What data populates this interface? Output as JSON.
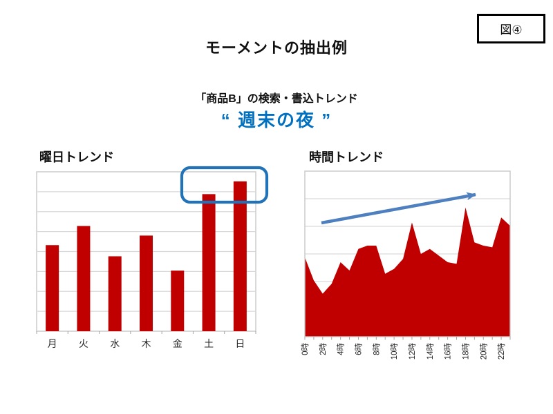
{
  "figure_label": "図④",
  "title": "モーメントの抽出例",
  "subtitle": {
    "line1": "「商品B」の検索・書込トレンド",
    "line2": "“ 週末の夜 ”"
  },
  "colors": {
    "series_red": "#C00000",
    "accent_blue": "#0070C0",
    "arrow_blue": "#4E7FBE",
    "highlight_blue": "#2272B8",
    "gridline": "#D9D9D9",
    "plot_border": "#C8C8C8",
    "tick": "#A6A6A6",
    "axis_text": "#262626"
  },
  "chart_data": [
    {
      "type": "bar",
      "title": "曜日トレンド",
      "categories": [
        "月",
        "火",
        "水",
        "木",
        "金",
        "土",
        "日"
      ],
      "values": [
        54,
        66,
        47,
        60,
        38,
        86,
        94
      ],
      "ylim": [
        0,
        100
      ],
      "y_gridline_divisions": 8,
      "grid": true,
      "legend": false,
      "y_axis_labels": "none",
      "bar_color": "#C00000",
      "highlight": {
        "shape": "rounded-rectangle",
        "color": "#2272B8",
        "over_categories": [
          "土",
          "日"
        ],
        "meaning": "weekend bars highlighted"
      }
    },
    {
      "type": "area",
      "title": "時間トレンド",
      "x_hours": [
        0,
        1,
        2,
        3,
        4,
        5,
        6,
        7,
        8,
        9,
        10,
        11,
        12,
        13,
        14,
        15,
        16,
        17,
        18,
        19,
        20,
        21,
        22,
        23
      ],
      "x_tick_labels": [
        "0時",
        "2時",
        "4時",
        "6時",
        "8時",
        "10時",
        "12時",
        "14時",
        "16時",
        "18時",
        "20時",
        "22時"
      ],
      "values": [
        48,
        34,
        26,
        32,
        45,
        40,
        53,
        55,
        55,
        38,
        41,
        47,
        69,
        50,
        53,
        49,
        45,
        44,
        78,
        57,
        55,
        54,
        72,
        67
      ],
      "ylim": [
        0,
        100
      ],
      "y_gridline_divisions": 6,
      "grid": true,
      "legend": false,
      "y_axis_labels": "none",
      "area_color": "#C00000",
      "annotation": {
        "shape": "trend-arrow",
        "direction": "up-right",
        "color": "#4E7FBE",
        "meaning": "rising trend toward evening"
      }
    }
  ]
}
